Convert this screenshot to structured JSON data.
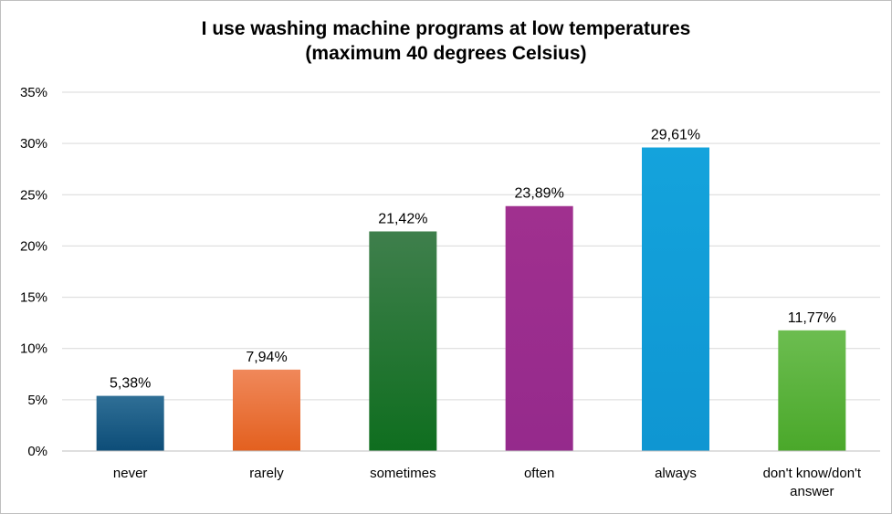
{
  "chart_data": {
    "type": "bar",
    "title_lines": [
      "I use washing machine programs at low temperatures",
      "(maximum  40 degrees Celsius)"
    ],
    "categories": [
      "never",
      "rarely",
      "sometimes",
      "often",
      "always",
      "don't know/don't answer"
    ],
    "category_label_lines": [
      [
        "never"
      ],
      [
        "rarely"
      ],
      [
        "sometimes"
      ],
      [
        "often"
      ],
      [
        "always"
      ],
      [
        "don't know/don't",
        "answer"
      ]
    ],
    "values": [
      5.38,
      7.94,
      21.42,
      23.89,
      29.61,
      11.77
    ],
    "data_labels": [
      "5,38%",
      "7,94%",
      "21,42%",
      "23,89%",
      "29,61%",
      "11,77%"
    ],
    "y_ticks": [
      0,
      5,
      10,
      15,
      20,
      25,
      30,
      35
    ],
    "y_tick_labels": [
      "0%",
      "5%",
      "10%",
      "15%",
      "20%",
      "25%",
      "30%",
      "35%"
    ],
    "ylim": [
      0,
      35
    ],
    "xlabel": "",
    "ylabel": "",
    "grid": true,
    "legend": "none",
    "bar_colors": [
      [
        "#2f6f96",
        "#0d4d78"
      ],
      [
        "#f0885a",
        "#e3601f"
      ],
      [
        "#3f7f4c",
        "#0f6e1f"
      ],
      [
        "#a0308f",
        "#952a8c"
      ],
      [
        "#14a3dc",
        "#0f96d2"
      ],
      [
        "#6cbd50",
        "#4aa82a"
      ]
    ],
    "gridline_color": "#d9d9d9",
    "axis_color": "#bfbfbf"
  }
}
